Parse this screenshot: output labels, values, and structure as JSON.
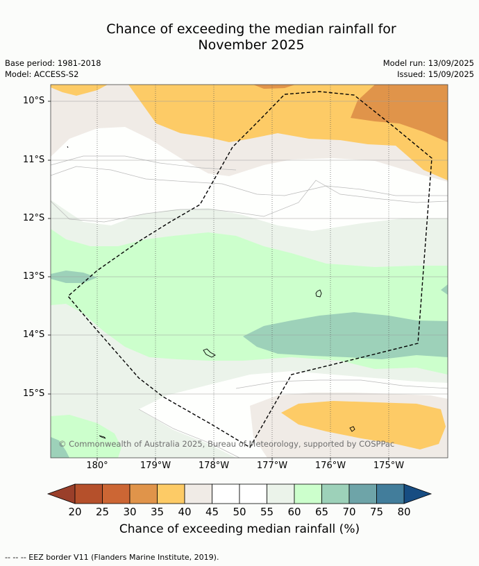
{
  "title_line1": "Chance of exceeding the median rainfall for",
  "title_line2": "November 2025",
  "meta_left": [
    "Base period: 1981-2018",
    "Model: ACCESS-S2"
  ],
  "meta_right": [
    "Model run: 13/09/2025",
    "Issued: 15/09/2025"
  ],
  "lat_labels": [
    "10°S",
    "11°S",
    "12°S",
    "13°S",
    "14°S",
    "15°S"
  ],
  "lon_labels": [
    "180°",
    "179°W",
    "178°W",
    "177°W",
    "176°W",
    "175°W"
  ],
  "copyright": "© Commonwealth of Australia 2025, Bureau of Meteorology, supported by COSPPac",
  "colorbar": {
    "label": "Chance of exceeding median rainfall (%)",
    "ticks": [
      "20",
      "25",
      "30",
      "35",
      "40",
      "45",
      "50",
      "55",
      "60",
      "65",
      "70",
      "75",
      "80"
    ],
    "colors": [
      "#b5502b",
      "#cc6634",
      "#e0944a",
      "#fdcb66",
      "#f0ebe6",
      "#ffffff",
      "#ffffff",
      "#ebf3ea",
      "#ccffcc",
      "#9dd1b9",
      "#6ea4a8",
      "#427d9b"
    ],
    "under_color": "#9a3f2a",
    "over_color": "#174d82"
  },
  "footnote": "-- -- -- EEZ border V11 (Flanders Marine Institute, 2019).",
  "map_colors": {
    "35-40": "#fdcb66",
    "30-35": "#e0944a",
    "40-45": "#f0ebe6",
    "45-55": "#fefffd",
    "55-60": "#ebf3ea",
    "60-65": "#ccffcc",
    "65-70": "#9dd1b9"
  }
}
